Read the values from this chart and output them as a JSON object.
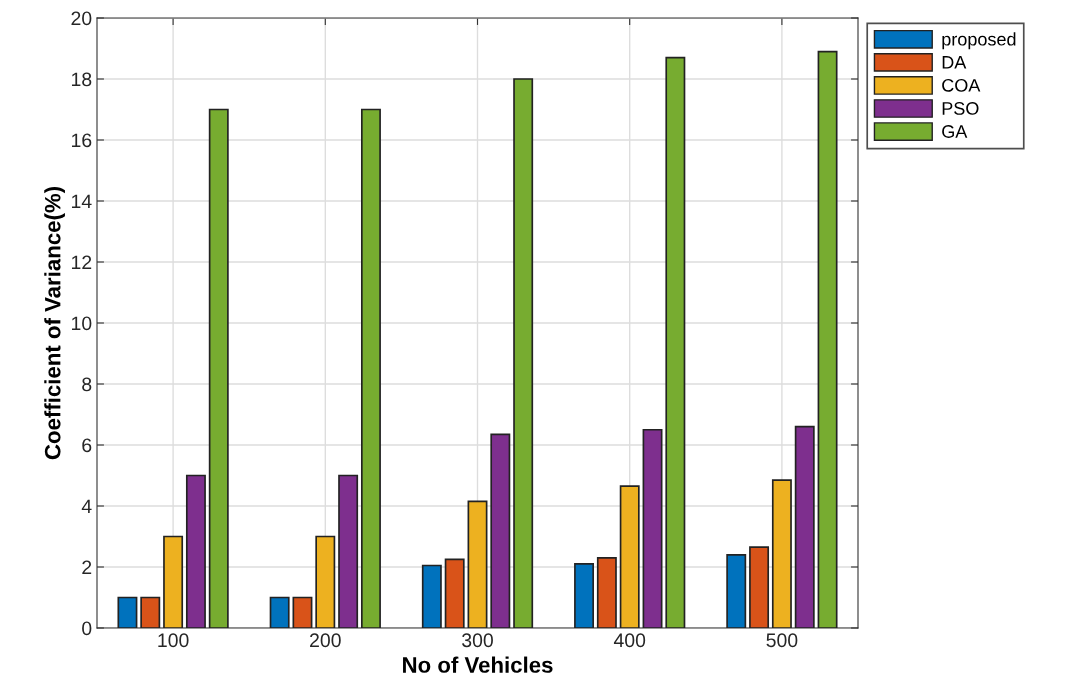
{
  "chart_data": {
    "type": "bar",
    "xlabel": "No of Vehicles",
    "ylabel": "Coefficient of Variance(%)",
    "categories": [
      "100",
      "200",
      "300",
      "400",
      "500"
    ],
    "series": [
      {
        "name": "proposed",
        "color": "#0072bd",
        "values": [
          1,
          1,
          2.05,
          2.1,
          2.4
        ]
      },
      {
        "name": "DA",
        "color": "#d95319",
        "values": [
          1,
          1,
          2.25,
          2.3,
          2.65
        ]
      },
      {
        "name": "COA",
        "color": "#edb120",
        "values": [
          3,
          3,
          4.15,
          4.65,
          4.85
        ]
      },
      {
        "name": "PSO",
        "color": "#7e2f8e",
        "values": [
          5,
          5,
          6.35,
          6.5,
          6.6
        ]
      },
      {
        "name": "GA",
        "color": "#77ac30",
        "values": [
          17,
          17,
          18,
          18.7,
          18.9
        ]
      }
    ],
    "ylim": [
      0,
      20
    ],
    "yticks": [
      0,
      2,
      4,
      6,
      8,
      10,
      12,
      14,
      16,
      18,
      20
    ],
    "grid": true,
    "legend": "top right"
  }
}
